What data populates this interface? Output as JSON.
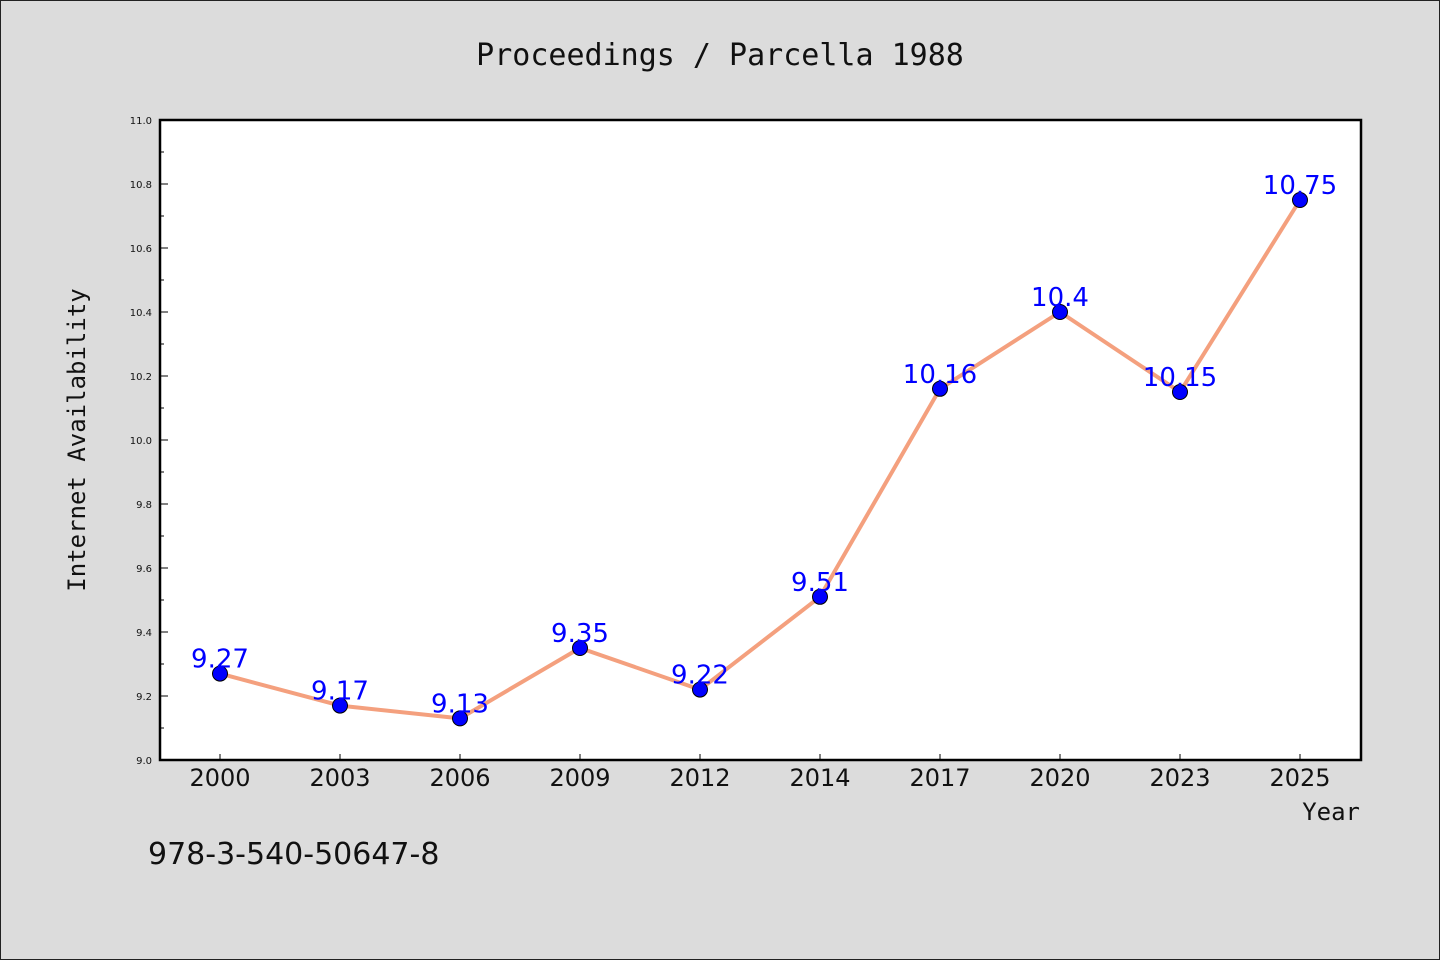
{
  "chart_data": {
    "type": "line",
    "title": "Proceedings / Parcella 1988",
    "xlabel": "Year",
    "ylabel": "Internet Availability",
    "categories": [
      "2000",
      "2003",
      "2006",
      "2009",
      "2012",
      "2014",
      "2017",
      "2020",
      "2023",
      "2025"
    ],
    "values": [
      9.27,
      9.17,
      9.13,
      9.35,
      9.22,
      9.51,
      10.16,
      10.4,
      10.15,
      10.75
    ],
    "data_labels": [
      "9.27",
      "9.17",
      "9.13",
      "9.35",
      "9.22",
      "9.51",
      "10.16",
      "10.4",
      "10.15",
      "10.75"
    ],
    "ylim": [
      9.0,
      11.0
    ],
    "yticks": [
      "9.0",
      "9.2",
      "9.4",
      "9.6",
      "9.8",
      "10.0",
      "10.2",
      "10.4",
      "10.6",
      "10.8",
      "11.0"
    ],
    "grid": false,
    "line_color": "#f4a07e",
    "marker_color": "#0000ff",
    "label_color": "#0000ff"
  },
  "footnote": "978-3-540-50647-8"
}
